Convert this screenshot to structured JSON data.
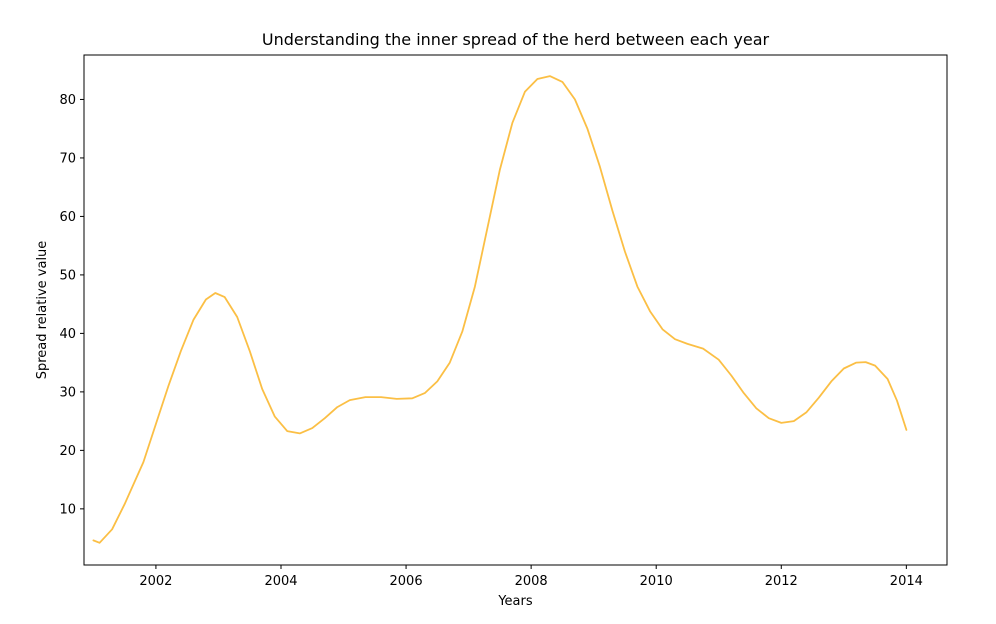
{
  "chart_data": {
    "type": "line",
    "title": "Understanding the inner spread of the herd between each year",
    "xlabel": "Years",
    "ylabel": "Spread relative value",
    "xlim": [
      2000.85,
      2014.65
    ],
    "ylim": [
      0.4,
      87.6
    ],
    "x_ticks": [
      2002,
      2004,
      2006,
      2008,
      2010,
      2012,
      2014
    ],
    "y_ticks": [
      10,
      20,
      30,
      40,
      50,
      60,
      70,
      80
    ],
    "grid": false,
    "legend": "none",
    "series": [
      {
        "color": "#fbbf45",
        "points": [
          [
            2001.0,
            4.6
          ],
          [
            2001.1,
            4.2
          ],
          [
            2001.3,
            6.5
          ],
          [
            2001.5,
            10.8
          ],
          [
            2001.8,
            18.0
          ],
          [
            2002.0,
            24.5
          ],
          [
            2002.2,
            31.0
          ],
          [
            2002.4,
            37.0
          ],
          [
            2002.6,
            42.3
          ],
          [
            2002.8,
            45.8
          ],
          [
            2002.95,
            46.9
          ],
          [
            2003.1,
            46.2
          ],
          [
            2003.3,
            42.8
          ],
          [
            2003.5,
            37.0
          ],
          [
            2003.7,
            30.5
          ],
          [
            2003.9,
            25.8
          ],
          [
            2004.1,
            23.3
          ],
          [
            2004.3,
            22.9
          ],
          [
            2004.5,
            23.8
          ],
          [
            2004.7,
            25.5
          ],
          [
            2004.9,
            27.4
          ],
          [
            2005.1,
            28.6
          ],
          [
            2005.35,
            29.1
          ],
          [
            2005.6,
            29.1
          ],
          [
            2005.85,
            28.8
          ],
          [
            2006.1,
            28.9
          ],
          [
            2006.3,
            29.8
          ],
          [
            2006.5,
            31.8
          ],
          [
            2006.7,
            35.0
          ],
          [
            2006.9,
            40.3
          ],
          [
            2007.1,
            48.0
          ],
          [
            2007.3,
            58.0
          ],
          [
            2007.5,
            68.0
          ],
          [
            2007.7,
            76.0
          ],
          [
            2007.9,
            81.3
          ],
          [
            2008.1,
            83.5
          ],
          [
            2008.3,
            84.0
          ],
          [
            2008.5,
            83.0
          ],
          [
            2008.7,
            80.0
          ],
          [
            2008.9,
            75.0
          ],
          [
            2009.1,
            68.5
          ],
          [
            2009.3,
            61.0
          ],
          [
            2009.5,
            54.0
          ],
          [
            2009.7,
            48.0
          ],
          [
            2009.9,
            43.8
          ],
          [
            2010.1,
            40.7
          ],
          [
            2010.3,
            39.0
          ],
          [
            2010.5,
            38.2
          ],
          [
            2010.75,
            37.4
          ],
          [
            2011.0,
            35.5
          ],
          [
            2011.2,
            32.8
          ],
          [
            2011.4,
            29.8
          ],
          [
            2011.6,
            27.2
          ],
          [
            2011.8,
            25.5
          ],
          [
            2012.0,
            24.7
          ],
          [
            2012.2,
            25.0
          ],
          [
            2012.4,
            26.5
          ],
          [
            2012.6,
            29.0
          ],
          [
            2012.8,
            31.8
          ],
          [
            2013.0,
            34.0
          ],
          [
            2013.2,
            35.0
          ],
          [
            2013.35,
            35.1
          ],
          [
            2013.5,
            34.5
          ],
          [
            2013.7,
            32.2
          ],
          [
            2013.85,
            28.5
          ],
          [
            2014.0,
            23.5
          ]
        ]
      }
    ]
  }
}
